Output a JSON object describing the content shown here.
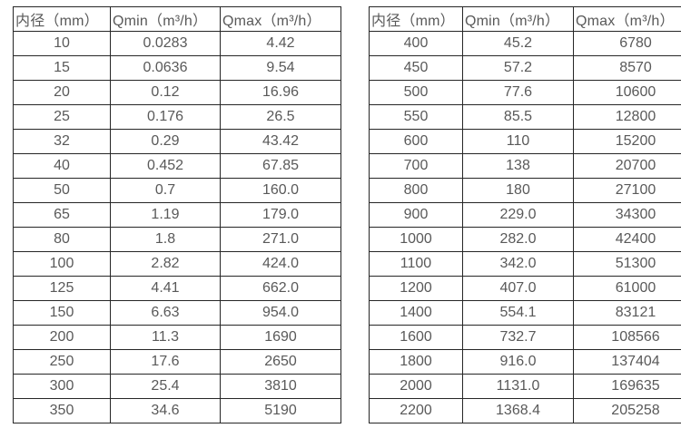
{
  "page": {
    "background_color": "#ffffff",
    "text_color": "#595959",
    "border_color": "#262626"
  },
  "chart_data": [
    {
      "type": "table",
      "title": "",
      "columns": [
        "内径（mm）",
        "Qmin（m³/h）",
        "Qmax（m³/h）"
      ],
      "rows": [
        [
          "10",
          "0.0283",
          "4.42"
        ],
        [
          "15",
          "0.0636",
          "9.54"
        ],
        [
          "20",
          "0.12",
          "16.96"
        ],
        [
          "25",
          "0.176",
          "26.5"
        ],
        [
          "32",
          "0.29",
          "43.42"
        ],
        [
          "40",
          "0.452",
          "67.85"
        ],
        [
          "50",
          "0.7",
          "160.0"
        ],
        [
          "65",
          "1.19",
          "179.0"
        ],
        [
          "80",
          "1.8",
          "271.0"
        ],
        [
          "100",
          "2.82",
          "424.0"
        ],
        [
          "125",
          "4.41",
          "662.0"
        ],
        [
          "150",
          "6.63",
          "954.0"
        ],
        [
          "200",
          "11.3",
          "1690"
        ],
        [
          "250",
          "17.6",
          "2650"
        ],
        [
          "300",
          "25.4",
          "3810"
        ],
        [
          "350",
          "34.6",
          "5190"
        ]
      ]
    },
    {
      "type": "table",
      "title": "",
      "columns": [
        "内径（mm）",
        "Qmin（m³/h）",
        "Qmax（m³/h）"
      ],
      "rows": [
        [
          "400",
          "45.2",
          "6780"
        ],
        [
          "450",
          "57.2",
          "8570"
        ],
        [
          "500",
          "77.6",
          "10600"
        ],
        [
          "550",
          "85.5",
          "12800"
        ],
        [
          "600",
          "110",
          "15200"
        ],
        [
          "700",
          "138",
          "20700"
        ],
        [
          "800",
          "180",
          "27100"
        ],
        [
          "900",
          "229.0",
          "34300"
        ],
        [
          "1000",
          "282.0",
          "42400"
        ],
        [
          "1100",
          "342.0",
          "51300"
        ],
        [
          "1200",
          "407.0",
          "61000"
        ],
        [
          "1400",
          "554.1",
          "83121"
        ],
        [
          "1600",
          "732.7",
          "108566"
        ],
        [
          "1800",
          "916.0",
          "137404"
        ],
        [
          "2000",
          "1131.0",
          "169635"
        ],
        [
          "2200",
          "1368.4",
          "205258"
        ]
      ]
    }
  ]
}
